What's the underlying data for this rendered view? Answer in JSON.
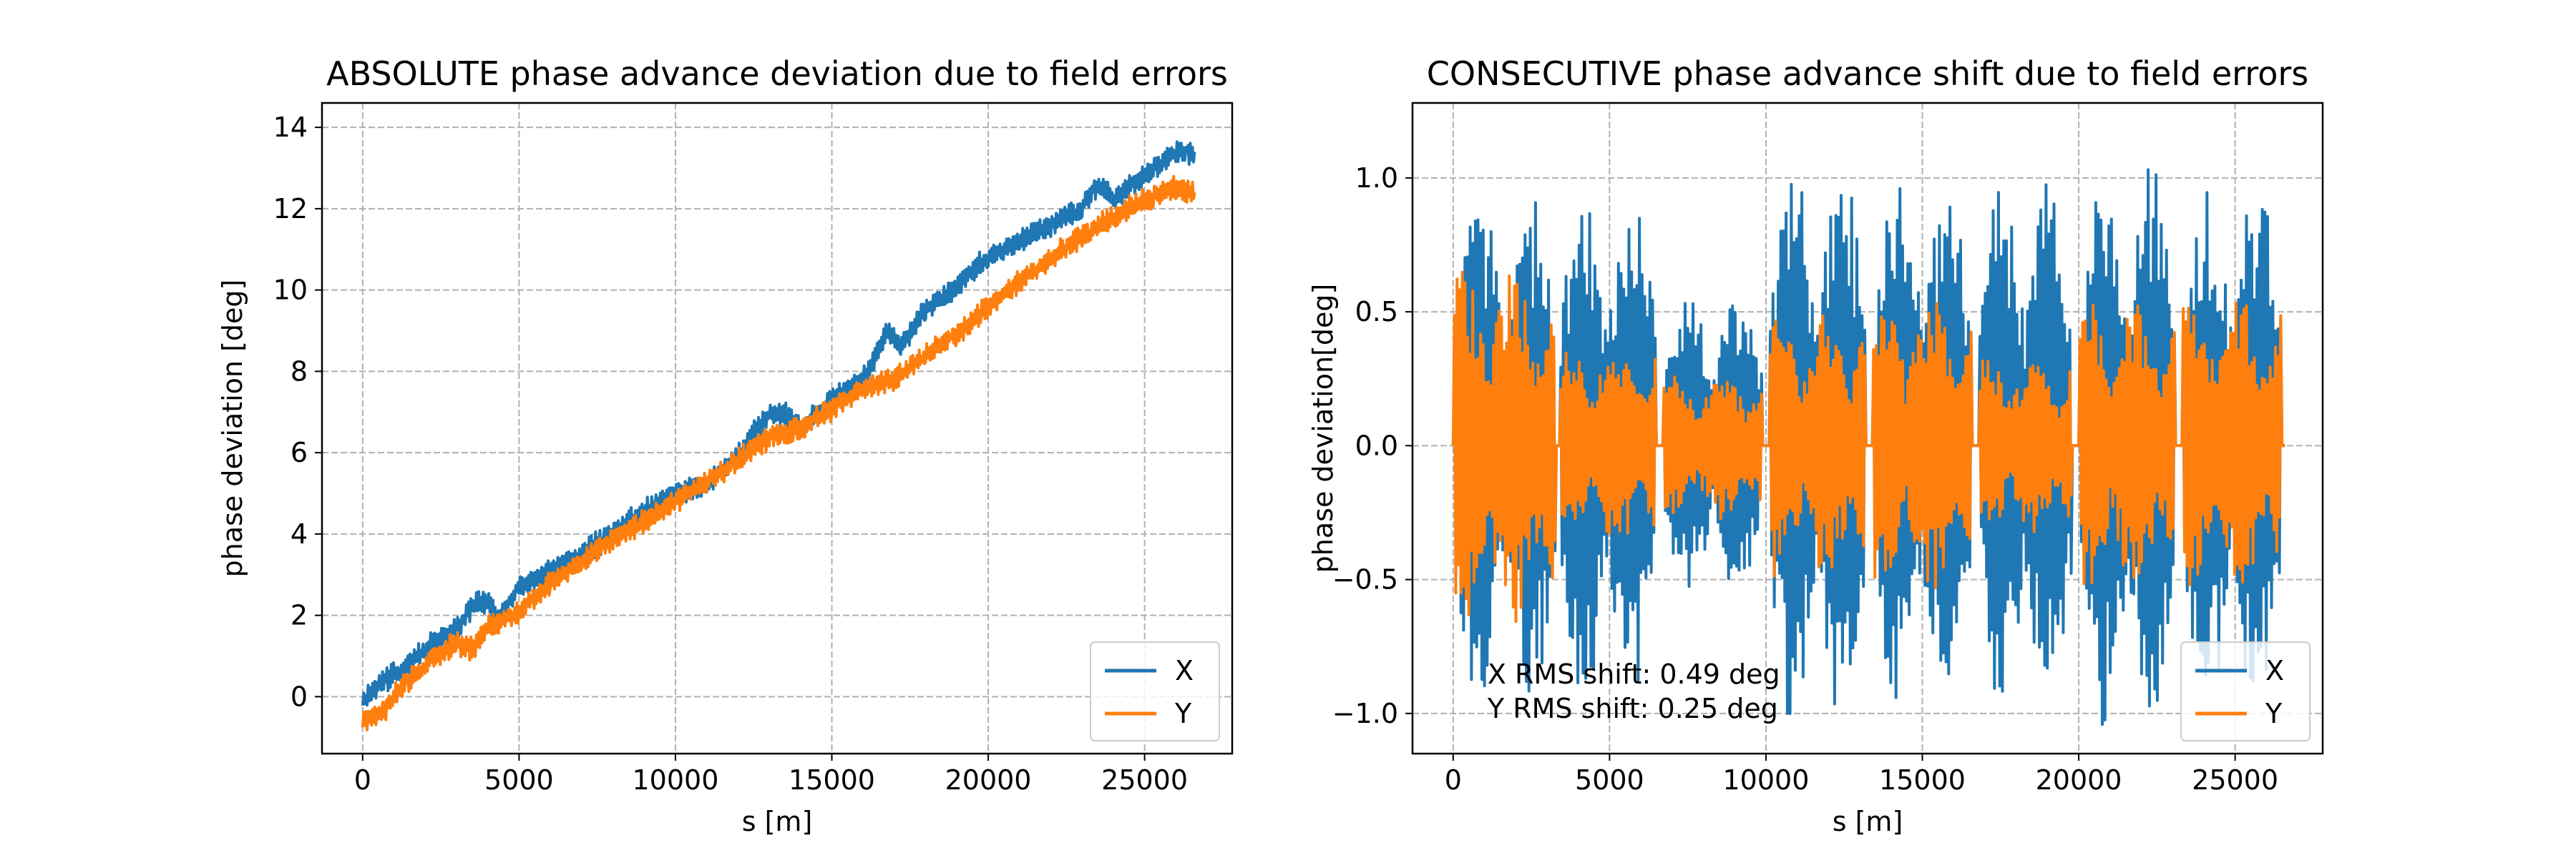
{
  "chart_data": [
    {
      "type": "line",
      "title": "ABSOLUTE phase advance deviation due to field errors",
      "xlabel": "s [m]",
      "ylabel": "phase deviation [deg]",
      "xlim": [
        -1300,
        27800
      ],
      "ylim": [
        -1.4,
        14.6
      ],
      "xticks": [
        0,
        5000,
        10000,
        15000,
        20000,
        25000
      ],
      "yticks": [
        0,
        2,
        4,
        6,
        8,
        10,
        12,
        14
      ],
      "grid": true,
      "legend_position": "lower-right",
      "series": [
        {
          "name": "X",
          "color": "#1f77b4",
          "points": [
            [
              0,
              -0.1
            ],
            [
              600,
              0.4
            ],
            [
              1200,
              0.6
            ],
            [
              2000,
              1.2
            ],
            [
              3000,
              1.7
            ],
            [
              3600,
              2.3
            ],
            [
              4000,
              2.3
            ],
            [
              4300,
              1.9
            ],
            [
              5000,
              2.7
            ],
            [
              6000,
              3.1
            ],
            [
              7000,
              3.5
            ],
            [
              8000,
              4.0
            ],
            [
              9000,
              4.6
            ],
            [
              10000,
              5.0
            ],
            [
              11000,
              5.2
            ],
            [
              12000,
              5.9
            ],
            [
              13000,
              7.0
            ],
            [
              13600,
              6.9
            ],
            [
              14000,
              6.6
            ],
            [
              15000,
              7.3
            ],
            [
              16000,
              7.8
            ],
            [
              16800,
              9.0
            ],
            [
              17200,
              8.6
            ],
            [
              18000,
              9.5
            ],
            [
              19000,
              10.1
            ],
            [
              20000,
              10.8
            ],
            [
              21000,
              11.2
            ],
            [
              22000,
              11.6
            ],
            [
              23000,
              12.0
            ],
            [
              23500,
              12.6
            ],
            [
              24000,
              12.2
            ],
            [
              25000,
              12.8
            ],
            [
              26000,
              13.4
            ],
            [
              26600,
              13.4
            ]
          ]
        },
        {
          "name": "Y",
          "color": "#ff7f0e",
          "points": [
            [
              0,
              -0.6
            ],
            [
              600,
              -0.4
            ],
            [
              1200,
              0.2
            ],
            [
              2000,
              0.8
            ],
            [
              3000,
              1.3
            ],
            [
              3600,
              1.2
            ],
            [
              4000,
              1.7
            ],
            [
              5000,
              2.1
            ],
            [
              6000,
              2.8
            ],
            [
              7000,
              3.3
            ],
            [
              8000,
              3.9
            ],
            [
              9000,
              4.3
            ],
            [
              10000,
              4.8
            ],
            [
              11000,
              5.3
            ],
            [
              12000,
              5.8
            ],
            [
              13000,
              6.4
            ],
            [
              14000,
              6.6
            ],
            [
              15000,
              7.1
            ],
            [
              16000,
              7.6
            ],
            [
              17000,
              7.8
            ],
            [
              18000,
              8.4
            ],
            [
              19000,
              8.9
            ],
            [
              20000,
              9.6
            ],
            [
              21000,
              10.2
            ],
            [
              22000,
              10.8
            ],
            [
              23000,
              11.3
            ],
            [
              24000,
              11.8
            ],
            [
              25000,
              12.2
            ],
            [
              26000,
              12.5
            ],
            [
              26600,
              12.4
            ]
          ]
        }
      ]
    },
    {
      "type": "line",
      "title": "CONSECUTIVE phase advance shift due to field errors",
      "xlabel": "s [m]",
      "ylabel": "phase deviation[deg]",
      "xlim": [
        -1300,
        27800
      ],
      "ylim": [
        -1.15,
        1.28
      ],
      "xticks": [
        0,
        5000,
        10000,
        15000,
        20000,
        25000
      ],
      "yticks": [
        -1.0,
        -0.5,
        0.0,
        0.5,
        1.0
      ],
      "grid": true,
      "legend_position": "lower-right",
      "annotations": [
        "X RMS shift: 0.49 deg",
        "Y RMS shift: 0.25 deg"
      ],
      "series": [
        {
          "name": "X",
          "color": "#1f77b4",
          "segments": [
            {
              "start": 0,
              "end": 3300,
              "amplitude": 0.85,
              "peak_max": 1.17
            },
            {
              "start": 3400,
              "end": 6500,
              "amplitude": 0.85,
              "peak_max": 1.0
            },
            {
              "start": 6700,
              "end": 9900,
              "amplitude": 0.5,
              "peak_max": 0.6
            },
            {
              "start": 10100,
              "end": 13200,
              "amplitude": 0.95,
              "peak_max": 1.1
            },
            {
              "start": 13400,
              "end": 16600,
              "amplitude": 0.9,
              "peak_max": 1.05
            },
            {
              "start": 16800,
              "end": 19800,
              "amplitude": 0.9,
              "peak_max": 1.1
            },
            {
              "start": 20000,
              "end": 23100,
              "amplitude": 0.95,
              "peak_max": 1.15
            },
            {
              "start": 23300,
              "end": 26500,
              "amplitude": 0.9,
              "peak_max": 1.05
            }
          ]
        },
        {
          "name": "Y",
          "color": "#ff7f0e",
          "segments": [
            {
              "start": 0,
              "end": 3300,
              "amplitude": 0.6,
              "peak_max": 0.78
            },
            {
              "start": 3400,
              "end": 6500,
              "amplitude": 0.35,
              "peak_max": 0.45
            },
            {
              "start": 6700,
              "end": 9900,
              "amplitude": 0.25,
              "peak_max": 0.3
            },
            {
              "start": 10100,
              "end": 13200,
              "amplitude": 0.45,
              "peak_max": 0.65
            },
            {
              "start": 13400,
              "end": 16600,
              "amplitude": 0.5,
              "peak_max": 0.65
            },
            {
              "start": 16800,
              "end": 19800,
              "amplitude": 0.3,
              "peak_max": 0.4
            },
            {
              "start": 20000,
              "end": 23100,
              "amplitude": 0.5,
              "peak_max": 0.6
            },
            {
              "start": 23300,
              "end": 26500,
              "amplitude": 0.5,
              "peak_max": 0.7
            }
          ]
        }
      ]
    }
  ]
}
